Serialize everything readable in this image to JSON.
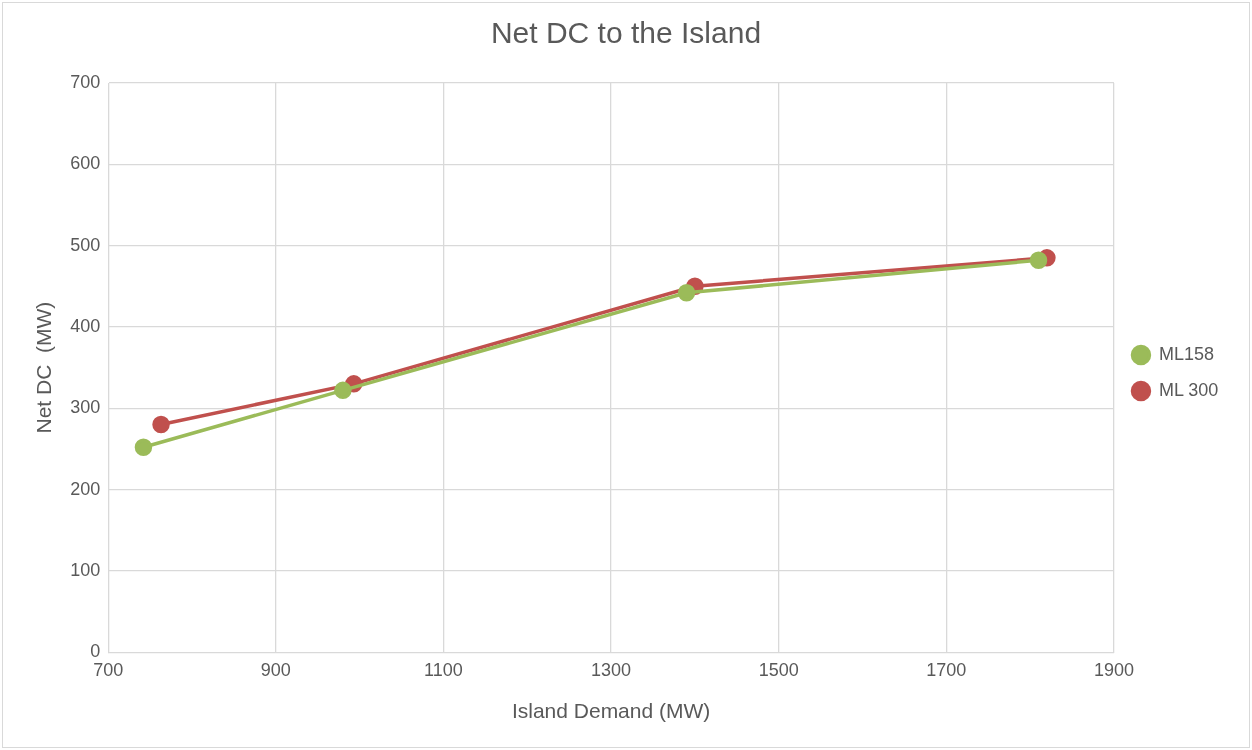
{
  "chart_data": {
    "type": "line",
    "title": "Net DC to the Island",
    "xlabel": "Island Demand (MW)",
    "ylabel": "Net DC  (MW)",
    "series": [
      {
        "name": "ML 300",
        "color": "#c0504d",
        "x": [
          763,
          993,
          1400,
          1820
        ],
        "values": [
          280,
          330,
          450,
          485
        ]
      },
      {
        "name": "ML158",
        "color": "#9bbb59",
        "x": [
          742,
          980,
          1390,
          1810
        ],
        "values": [
          252,
          322,
          442,
          482
        ]
      }
    ],
    "xlim": [
      700,
      1900
    ],
    "xticks": [
      700,
      900,
      1100,
      1300,
      1500,
      1700,
      1900
    ],
    "ylim": [
      0,
      700
    ],
    "yticks": [
      0,
      100,
      200,
      300,
      400,
      500,
      600,
      700
    ],
    "grid": true,
    "legend": "right",
    "marker": "circle",
    "line_style": "solid"
  }
}
